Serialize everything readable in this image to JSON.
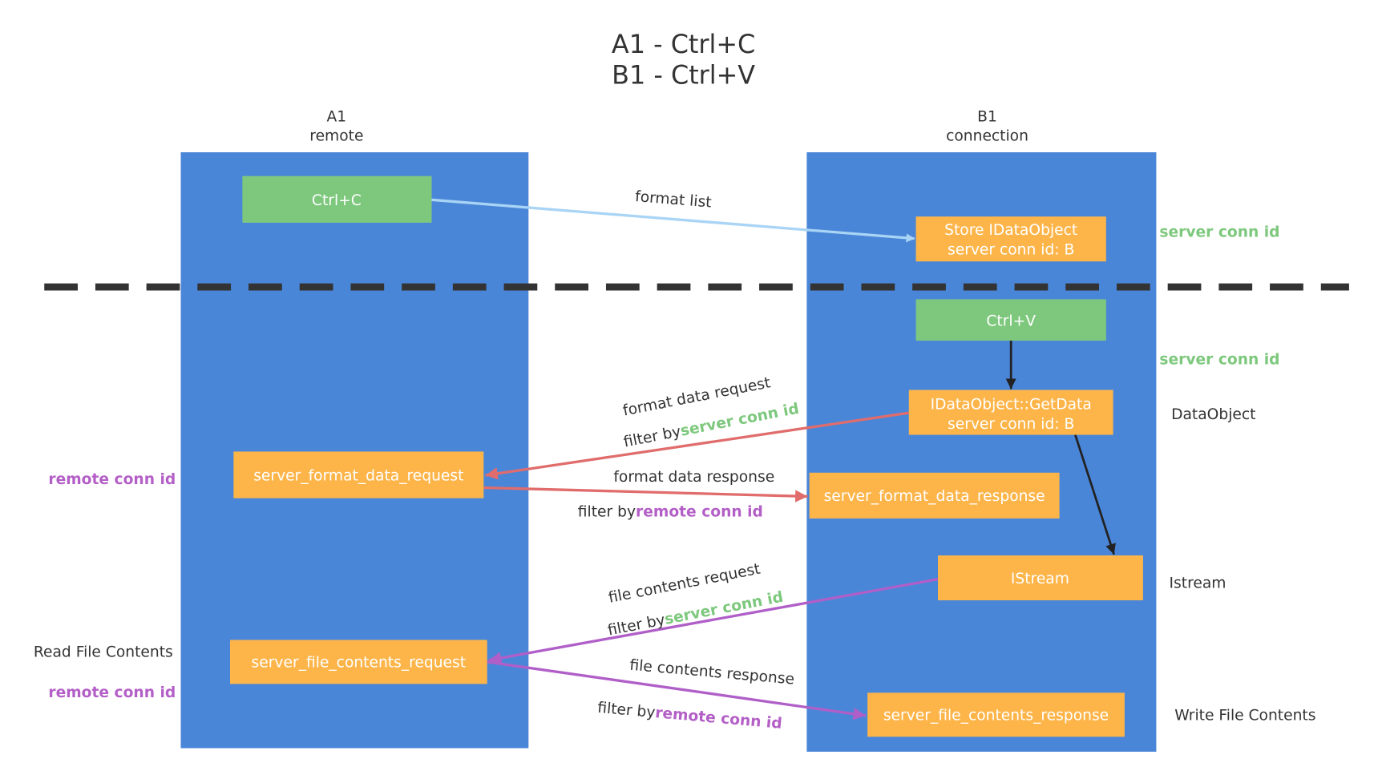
{
  "title": {
    "line1": "A1 - Ctrl+C",
    "line2": "B1 - Ctrl+V"
  },
  "lanes": {
    "left": {
      "name": "A1",
      "role": "remote"
    },
    "right": {
      "name": "B1",
      "role": "connection"
    }
  },
  "boxes": {
    "ctrl_c": "Ctrl+C",
    "store_line1": "Store IDataObject",
    "store_line2": "server conn id: B",
    "ctrl_v": "Ctrl+V",
    "getdata_line1": "IDataObject::GetData",
    "getdata_line2": "server conn id: B",
    "fmt_req": "server_format_data_request",
    "fmt_resp": "server_format_data_response",
    "istream": "IStream",
    "file_req": "server_file_contents_request",
    "file_resp": "server_file_contents_response"
  },
  "arrows": {
    "format_list": "format list",
    "format_data_request": "format data request",
    "format_data_response": "format data response",
    "file_contents_request": "file contents request",
    "file_contents_response": "file contents response",
    "filter_by": "filter by",
    "server_conn_id": "server conn id",
    "remote_conn_id": "remote conn id"
  },
  "side_labels": {
    "server_conn_id_1": "server conn id",
    "server_conn_id_2": "server conn id",
    "data_object": "DataObject",
    "istream": "Istream",
    "write_file_contents": "Write File Contents",
    "remote_conn_id_1": "remote conn id",
    "read_file_contents": "Read File Contents",
    "remote_conn_id_2": "remote conn id"
  },
  "colors": {
    "lane": "#4a86d8",
    "green_box": "#7ec87e",
    "orange_box": "#fdb54a",
    "format_list_arrow": "#a9d4f5",
    "format_arrow": "#e06c6c",
    "file_arrow": "#b05fc8",
    "server_conn_id": "#7dc87d",
    "remote_conn_id": "#b35fc7"
  }
}
